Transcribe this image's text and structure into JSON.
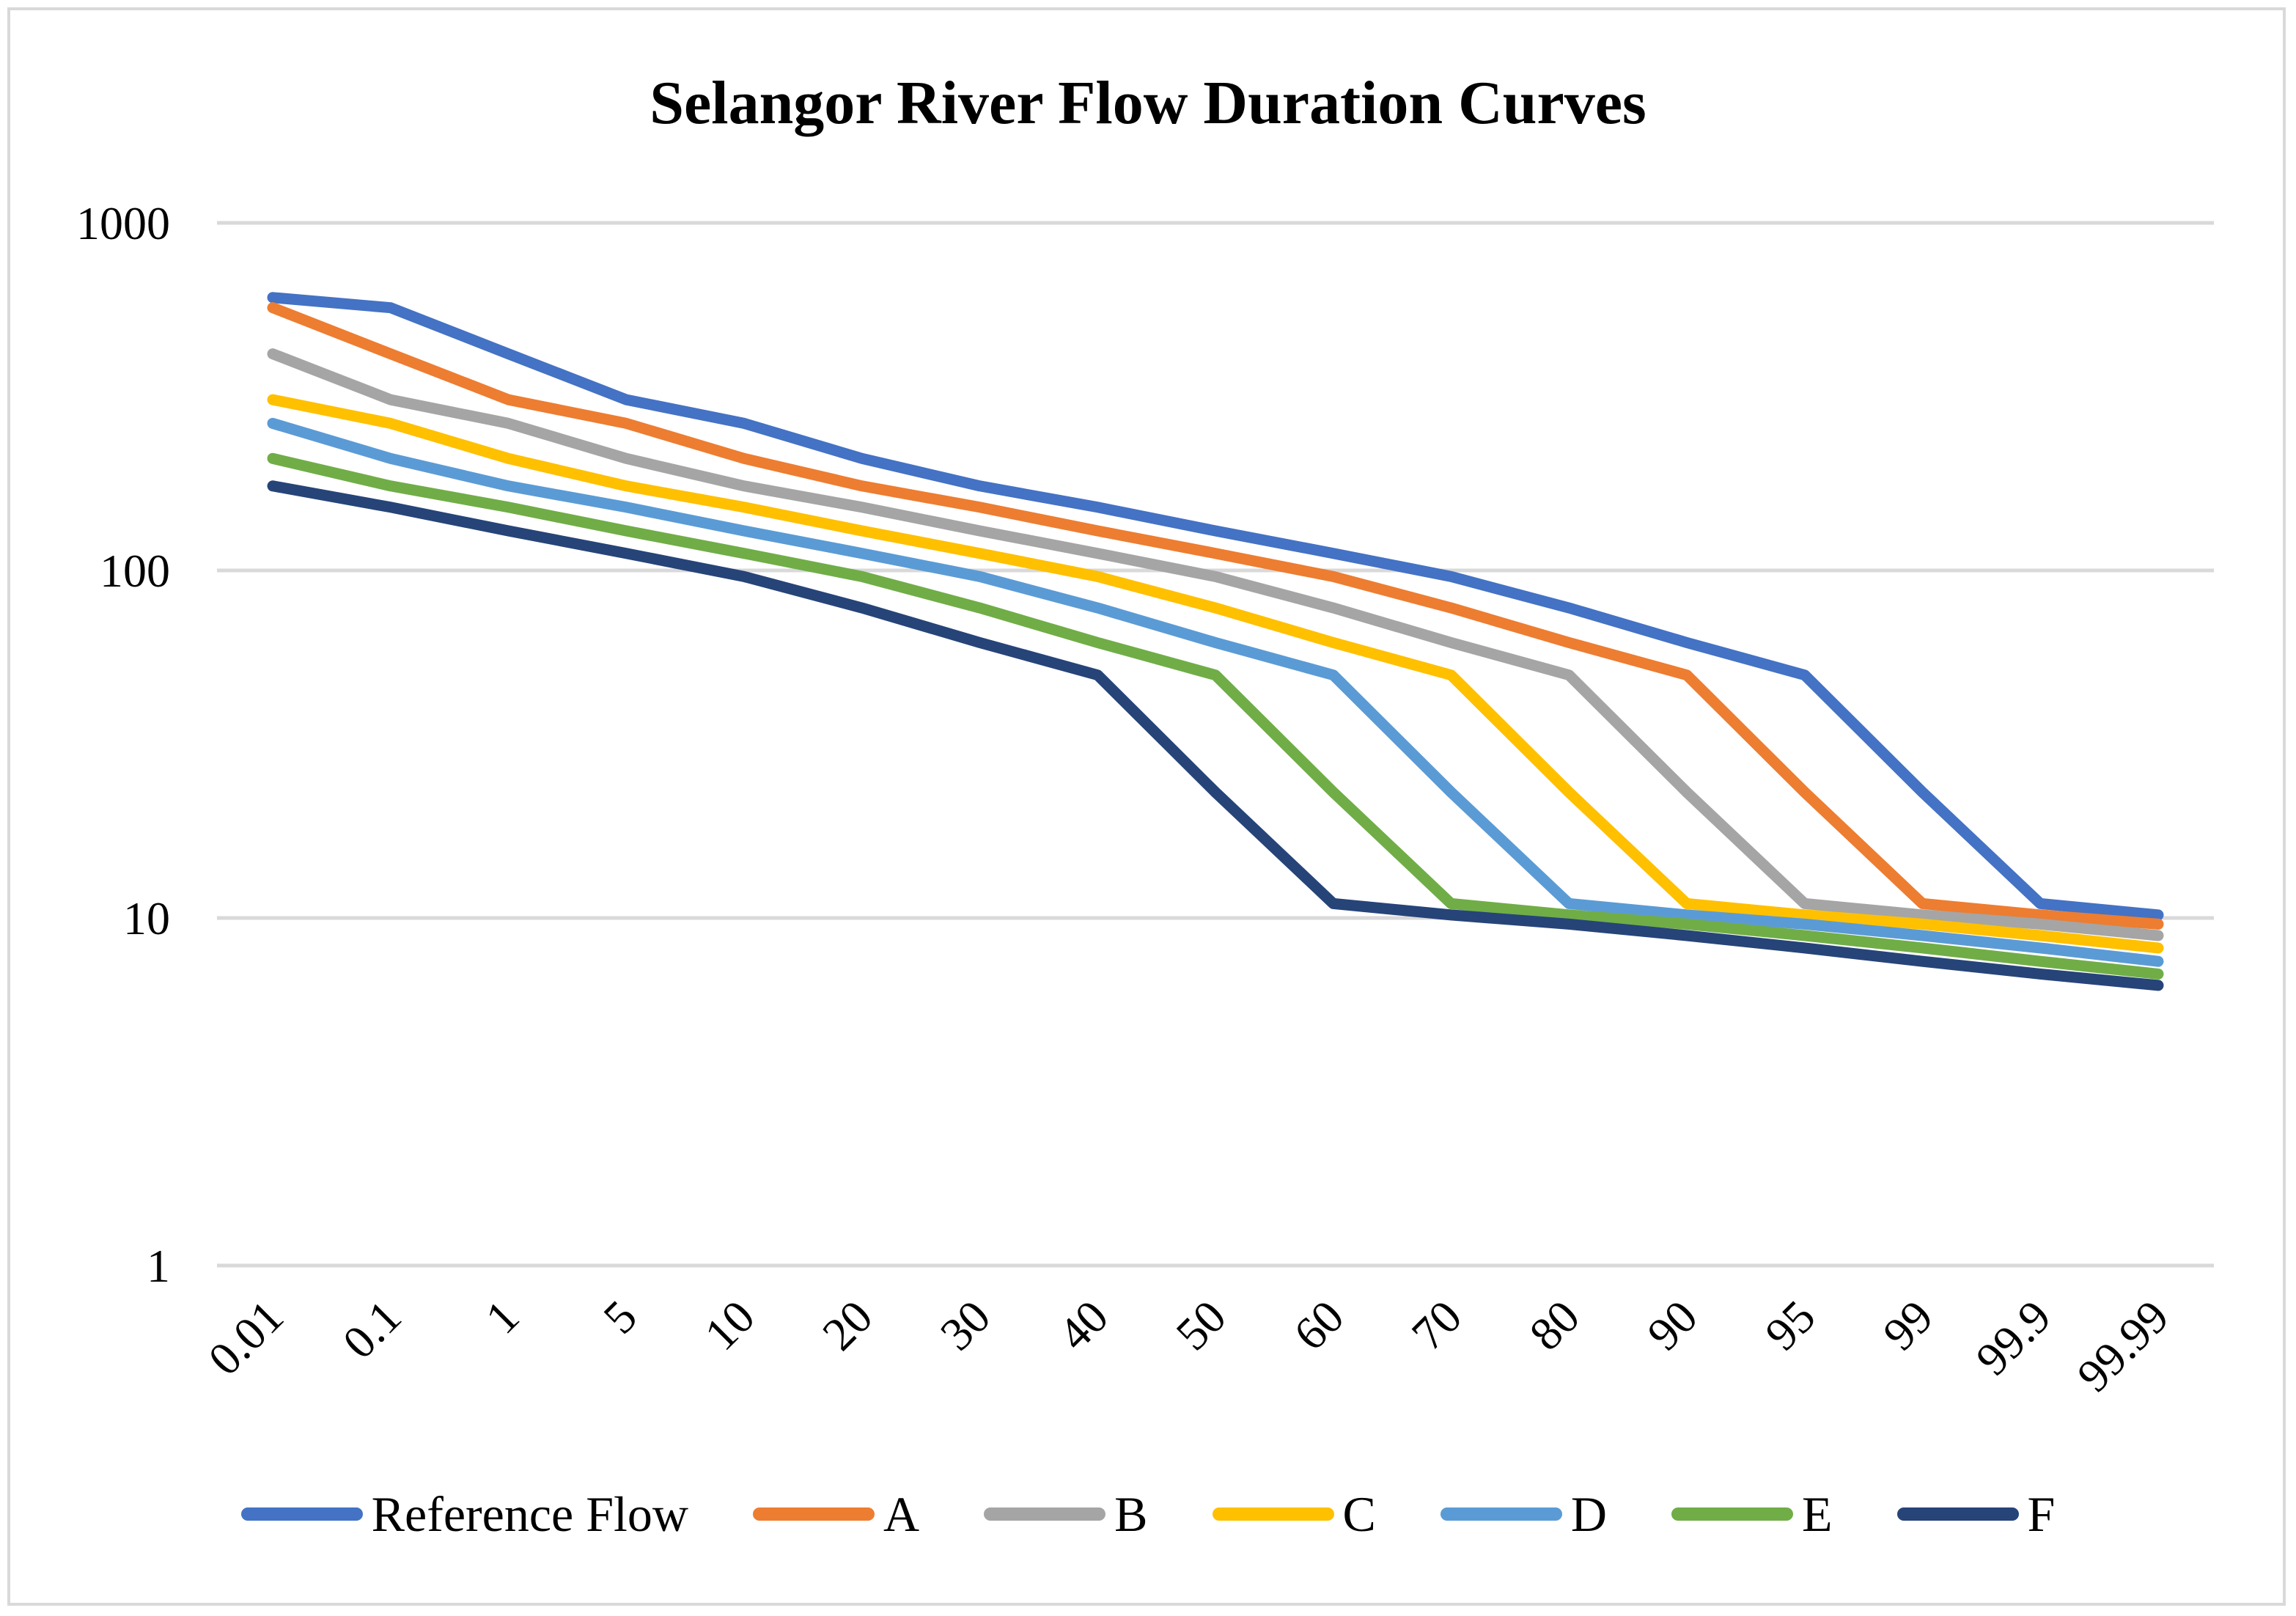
{
  "chart_data": {
    "type": "line",
    "title": "Selangor River Flow Duration Curves",
    "xlabel": "",
    "ylabel": "",
    "y_scale": "log",
    "ylim": [
      1,
      1000
    ],
    "y_ticks": [
      "1",
      "10",
      "100",
      "1000"
    ],
    "grid": true,
    "legend_position": "bottom",
    "categories": [
      "0.01",
      "0.1",
      "1",
      "5",
      "10",
      "20",
      "30",
      "40",
      "50",
      "60",
      "70",
      "80",
      "90",
      "95",
      "99",
      "99.9",
      "99.99"
    ],
    "series": [
      {
        "name": "Reference Flow",
        "color": "#4472C4",
        "values": [
          610,
          570,
          420,
          310,
          265,
          210,
          175,
          152,
          130,
          112,
          96,
          78,
          62,
          50,
          23,
          11,
          10.2
        ]
      },
      {
        "name": "A",
        "color": "#ED7D31",
        "values": [
          570,
          420,
          310,
          265,
          210,
          175,
          152,
          130,
          112,
          96,
          78,
          62,
          50,
          23,
          11,
          10.2,
          9.6
        ]
      },
      {
        "name": "B",
        "color": "#A5A5A5",
        "values": [
          420,
          310,
          265,
          210,
          175,
          152,
          130,
          112,
          96,
          78,
          62,
          50,
          23,
          11,
          10.2,
          9.6,
          8.9
        ]
      },
      {
        "name": "C",
        "color": "#FFC000",
        "values": [
          310,
          265,
          210,
          175,
          152,
          130,
          112,
          96,
          78,
          62,
          50,
          23,
          11,
          10.2,
          9.6,
          8.9,
          8.2
        ]
      },
      {
        "name": "D",
        "color": "#5B9BD5",
        "values": [
          265,
          210,
          175,
          152,
          130,
          112,
          96,
          78,
          62,
          50,
          23,
          11,
          10.2,
          9.6,
          8.9,
          8.2,
          7.5
        ]
      },
      {
        "name": "E",
        "color": "#70AD47",
        "values": [
          210,
          175,
          152,
          130,
          112,
          96,
          78,
          62,
          50,
          23,
          11,
          10.2,
          9.6,
          8.9,
          8.2,
          7.5,
          6.9
        ]
      },
      {
        "name": "F",
        "color": "#264478",
        "values": [
          175,
          152,
          130,
          112,
          96,
          78,
          62,
          50,
          23,
          11,
          10.2,
          9.6,
          8.9,
          8.2,
          7.5,
          6.9,
          6.4
        ]
      }
    ]
  }
}
